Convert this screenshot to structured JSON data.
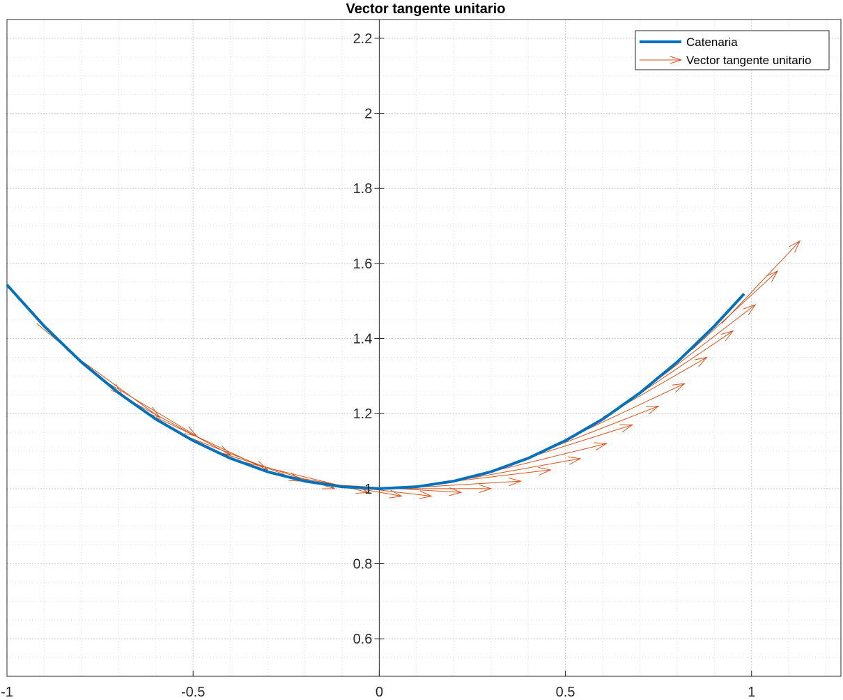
{
  "chart_data": {
    "type": "line",
    "title": "Vector tangente unitario",
    "xlabel": "",
    "ylabel": "",
    "xlim": [
      -1,
      1.24
    ],
    "ylim": [
      0.5,
      2.25
    ],
    "xticks": [
      -1,
      -0.5,
      0,
      0.5,
      1
    ],
    "xtick_labels": [
      "-1",
      "-0.5",
      "0",
      "0.5",
      "1"
    ],
    "yticks": [
      0.6,
      0.8,
      1,
      1.2,
      1.4,
      1.6,
      1.8,
      2,
      2.2
    ],
    "ytick_labels": [
      "0.6",
      "0.8",
      "1",
      "1.2",
      "1.4",
      "1.6",
      "1.8",
      "2",
      "2.2"
    ],
    "grid": true,
    "minor_grid": true,
    "axes_through_origin": true,
    "legend_position": "top-right",
    "series": [
      {
        "name": "Catenaria",
        "kind": "line",
        "color": "#0072BD",
        "x": [
          -1,
          -0.9,
          -0.8,
          -0.7,
          -0.6,
          -0.5,
          -0.4,
          -0.3,
          -0.2,
          -0.1,
          0,
          0.1,
          0.2,
          0.3,
          0.4,
          0.5,
          0.6,
          0.7,
          0.8,
          0.9,
          0.98
        ],
        "y": [
          1.543,
          1.433,
          1.337,
          1.255,
          1.185,
          1.128,
          1.081,
          1.045,
          1.02,
          1.005,
          1.0,
          1.005,
          1.02,
          1.045,
          1.081,
          1.128,
          1.185,
          1.255,
          1.337,
          1.433,
          1.519
        ]
      },
      {
        "name": "Vector tangente unitario",
        "kind": "quiver",
        "color": "#D95319",
        "vectors": [
          {
            "x": -0.92,
            "y": 1.44,
            "u": 0.23,
            "v": -0.19
          },
          {
            "x": -0.84,
            "y": 1.37,
            "u": 0.25,
            "v": -0.18
          },
          {
            "x": -0.76,
            "y": 1.3,
            "u": 0.27,
            "v": -0.16
          },
          {
            "x": -0.68,
            "y": 1.24,
            "u": 0.28,
            "v": -0.15
          },
          {
            "x": -0.6,
            "y": 1.19,
            "u": 0.3,
            "v": -0.14
          },
          {
            "x": -0.52,
            "y": 1.14,
            "u": 0.31,
            "v": -0.12
          },
          {
            "x": -0.44,
            "y": 1.1,
            "u": 0.32,
            "v": -0.1
          },
          {
            "x": -0.36,
            "y": 1.07,
            "u": 0.33,
            "v": -0.08
          },
          {
            "x": -0.28,
            "y": 1.04,
            "u": 0.34,
            "v": -0.06
          },
          {
            "x": -0.2,
            "y": 1.02,
            "u": 0.34,
            "v": -0.04
          },
          {
            "x": -0.12,
            "y": 1.01,
            "u": 0.34,
            "v": -0.02
          },
          {
            "x": -0.04,
            "y": 1.0,
            "u": 0.34,
            "v": 0.0
          },
          {
            "x": 0.04,
            "y": 1.0,
            "u": 0.34,
            "v": 0.02
          },
          {
            "x": 0.12,
            "y": 1.01,
            "u": 0.34,
            "v": 0.04
          },
          {
            "x": 0.2,
            "y": 1.02,
            "u": 0.34,
            "v": 0.06
          },
          {
            "x": 0.28,
            "y": 1.04,
            "u": 0.33,
            "v": 0.08
          },
          {
            "x": 0.36,
            "y": 1.07,
            "u": 0.32,
            "v": 0.1
          },
          {
            "x": 0.44,
            "y": 1.1,
            "u": 0.31,
            "v": 0.12
          },
          {
            "x": 0.52,
            "y": 1.14,
            "u": 0.3,
            "v": 0.14
          },
          {
            "x": 0.6,
            "y": 1.19,
            "u": 0.28,
            "v": 0.16
          },
          {
            "x": 0.68,
            "y": 1.24,
            "u": 0.27,
            "v": 0.18
          },
          {
            "x": 0.76,
            "y": 1.3,
            "u": 0.25,
            "v": 0.19
          },
          {
            "x": 0.84,
            "y": 1.37,
            "u": 0.23,
            "v": 0.21
          },
          {
            "x": 0.92,
            "y": 1.44,
            "u": 0.21,
            "v": 0.22
          }
        ]
      }
    ]
  },
  "colors": {
    "catenaria": "#0072BD",
    "tangente": "#D95319",
    "grid": "#dcdcdc",
    "axis": "#262626"
  }
}
